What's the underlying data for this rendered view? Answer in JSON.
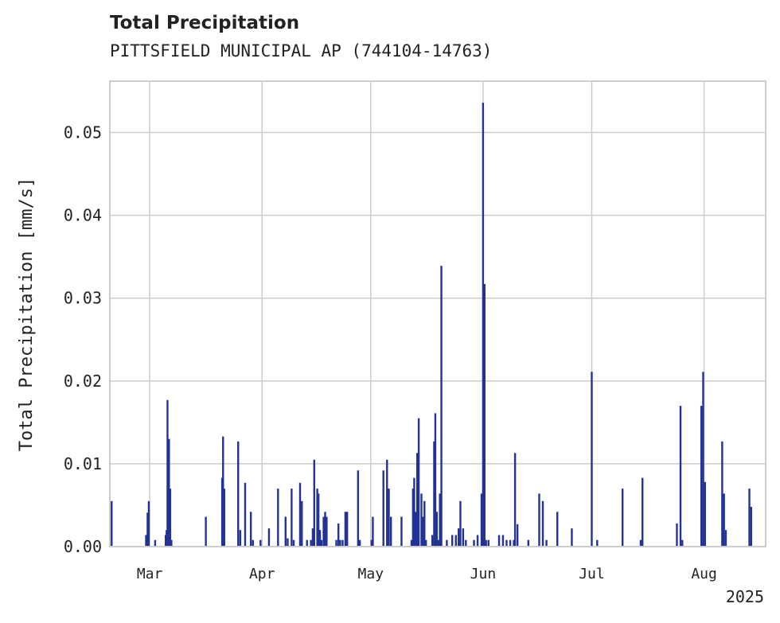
{
  "chart_data": {
    "type": "bar",
    "title": "Total Precipitation",
    "subtitle": "PITTSFIELD MUNICIPAL AP (744104-14763)",
    "ylabel": "Total Precipitation [mm/s]",
    "xlabel": "",
    "year_label": "2025",
    "xlim": [
      "2025-02-18",
      "2025-08-18"
    ],
    "ylim": [
      0,
      0.0562
    ],
    "grid": true,
    "bar_color": "#233394",
    "x_ticks": [
      {
        "date": "2025-03-01",
        "label": "Mar"
      },
      {
        "date": "2025-04-01",
        "label": "Apr"
      },
      {
        "date": "2025-05-01",
        "label": "May"
      },
      {
        "date": "2025-06-01",
        "label": "Jun"
      },
      {
        "date": "2025-07-01",
        "label": "Jul"
      },
      {
        "date": "2025-08-01",
        "label": "Aug"
      }
    ],
    "y_ticks": [
      {
        "value": 0.0,
        "label": "0.00"
      },
      {
        "value": 0.01,
        "label": "0.01"
      },
      {
        "value": 0.02,
        "label": "0.02"
      },
      {
        "value": 0.03,
        "label": "0.03"
      },
      {
        "value": 0.04,
        "label": "0.04"
      },
      {
        "value": 0.05,
        "label": "0.05"
      }
    ],
    "x": [
      "2025-02-18T12:00",
      "2025-02-28T00:00",
      "2025-02-28T10:00",
      "2025-02-28T18:00",
      "2025-03-02T12:00",
      "2025-03-05T10:00",
      "2025-03-05T16:00",
      "2025-03-05T22:00",
      "2025-03-06T08:00",
      "2025-03-06T16:00",
      "2025-03-07T00:00",
      "2025-03-16T12:00",
      "2025-03-21T00:00",
      "2025-03-21T06:00",
      "2025-03-21T14:00",
      "2025-03-25T10:00",
      "2025-03-26T00:00",
      "2025-03-27T08:00",
      "2025-03-28T22:00",
      "2025-03-29T12:00",
      "2025-03-31T14:00",
      "2025-04-02T22:00",
      "2025-04-05T10:00",
      "2025-04-07T12:00",
      "2025-04-08T02:00",
      "2025-04-09T04:00",
      "2025-04-09T18:00",
      "2025-04-11T12:00",
      "2025-04-12T00:00",
      "2025-04-13T10:00",
      "2025-04-14T12:00",
      "2025-04-15T00:00",
      "2025-04-15T10:00",
      "2025-04-16T06:00",
      "2025-04-16T14:00",
      "2025-04-17T00:00",
      "2025-04-17T10:00",
      "2025-04-18T00:00",
      "2025-04-18T10:00",
      "2025-04-18T20:00",
      "2025-04-21T12:00",
      "2025-04-22T02:00",
      "2025-04-22T14:00",
      "2025-04-23T06:00",
      "2025-04-24T00:00",
      "2025-04-24T12:00",
      "2025-04-27T12:00",
      "2025-04-28T00:00",
      "2025-05-01T06:00",
      "2025-05-01T14:00",
      "2025-05-04T12:00",
      "2025-05-05T12:00",
      "2025-05-06T00:00",
      "2025-05-06T14:00",
      "2025-05-09T12:00",
      "2025-05-12T06:00",
      "2025-05-12T16:00",
      "2025-05-13T00:00",
      "2025-05-13T10:00",
      "2025-05-13T20:00",
      "2025-05-14T06:00",
      "2025-05-15T00:00",
      "2025-05-15T10:00",
      "2025-05-15T20:00",
      "2025-05-16T06:00",
      "2025-05-18T00:00",
      "2025-05-18T12:00",
      "2025-05-18T20:00",
      "2025-05-19T06:00",
      "2025-05-19T16:00",
      "2025-05-20T02:00",
      "2025-05-20T12:00",
      "2025-05-22T00:00",
      "2025-05-23T12:00",
      "2025-05-24T12:00",
      "2025-05-25T06:00",
      "2025-05-25T18:00",
      "2025-05-26T12:00",
      "2025-05-27T06:00",
      "2025-05-29T12:00",
      "2025-05-30T12:00",
      "2025-05-31T14:00",
      "2025-06-01T00:00",
      "2025-06-01T10:00",
      "2025-06-01T20:00",
      "2025-06-02T12:00",
      "2025-06-05T10:00",
      "2025-06-06T12:00",
      "2025-06-07T12:00",
      "2025-06-08T12:00",
      "2025-06-09T12:00",
      "2025-06-09T20:00",
      "2025-06-10T12:00",
      "2025-06-13T12:00",
      "2025-06-16T12:00",
      "2025-06-17T12:00",
      "2025-06-18T12:00",
      "2025-06-21T12:00",
      "2025-06-25T12:00",
      "2025-07-01T00:00",
      "2025-07-02T12:00",
      "2025-07-09T12:00",
      "2025-07-14T12:00",
      "2025-07-15T00:00",
      "2025-07-24T12:00",
      "2025-07-25T12:00",
      "2025-07-26T00:00",
      "2025-07-31T06:00",
      "2025-07-31T18:00",
      "2025-08-01T06:00",
      "2025-08-06T00:00",
      "2025-08-06T12:00",
      "2025-08-07T00:00",
      "2025-08-13T12:00",
      "2025-08-14T00:00"
    ],
    "values": [
      0.0055,
      0.0014,
      0.0041,
      0.0055,
      0.0008,
      0.0014,
      0.002,
      0.0177,
      0.013,
      0.007,
      0.0008,
      0.0036,
      0.0083,
      0.0133,
      0.007,
      0.0127,
      0.002,
      0.0077,
      0.0042,
      0.0008,
      0.0008,
      0.0022,
      0.007,
      0.0036,
      0.001,
      0.007,
      0.0008,
      0.0077,
      0.0055,
      0.0008,
      0.0008,
      0.0022,
      0.0105,
      0.007,
      0.0064,
      0.002,
      0.0008,
      0.0036,
      0.0042,
      0.0036,
      0.0008,
      0.0028,
      0.0008,
      0.0008,
      0.0042,
      0.0042,
      0.0092,
      0.0008,
      0.0008,
      0.0036,
      0.0092,
      0.0105,
      0.007,
      0.0036,
      0.0036,
      0.0008,
      0.007,
      0.0083,
      0.0042,
      0.0113,
      0.0155,
      0.0064,
      0.0036,
      0.0055,
      0.0008,
      0.0014,
      0.0127,
      0.0161,
      0.0042,
      0.0008,
      0.0064,
      0.0339,
      0.0008,
      0.0014,
      0.0014,
      0.0022,
      0.0055,
      0.0022,
      0.0008,
      0.0008,
      0.0014,
      0.0064,
      0.0536,
      0.0317,
      0.0008,
      0.0008,
      0.0014,
      0.0014,
      0.0008,
      0.0008,
      0.0008,
      0.0113,
      0.0027,
      0.0008,
      0.0064,
      0.0055,
      0.0008,
      0.0042,
      0.0022,
      0.0211,
      0.0008,
      0.007,
      0.0008,
      0.0083,
      0.0028,
      0.017,
      0.0008,
      0.017,
      0.0211,
      0.0078,
      0.0127,
      0.0064,
      0.002,
      0.007,
      0.0048
    ]
  }
}
